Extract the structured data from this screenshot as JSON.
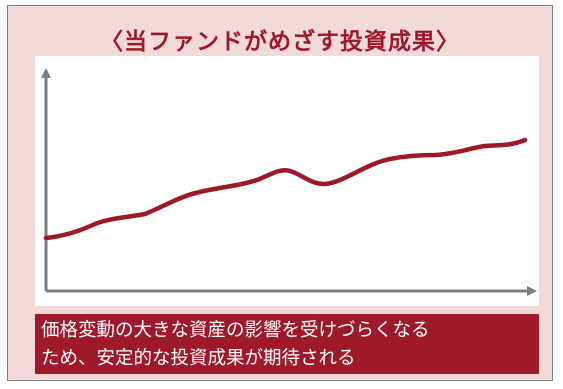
{
  "title": "〈当ファンドがめざす投資成果〉",
  "caption": {
    "line1": "価格変動の大きな資産の影響を受けづらくなる",
    "line2": "ため、安定的な投資成果が期待される"
  },
  "colors": {
    "accent": "#9e1a2a",
    "background": "#f2dada",
    "axis": "#7f7f7f",
    "panel": "#ffffff"
  }
}
